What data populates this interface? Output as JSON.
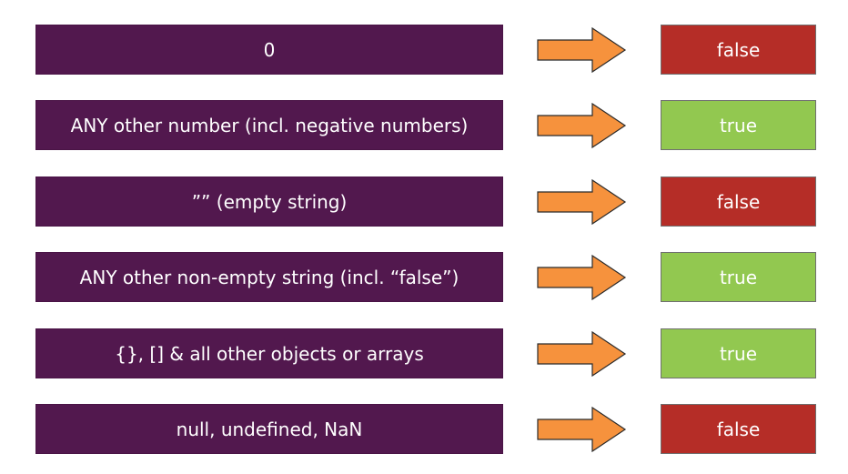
{
  "colors": {
    "value_box": "#52184e",
    "arrow_fill": "#f6923d",
    "arrow_stroke": "#2b2b2b",
    "false_fill": "#b52d27",
    "true_fill": "#92c850",
    "text": "#ffffff"
  },
  "rows": [
    {
      "value": "0",
      "result": "false",
      "result_type": "false"
    },
    {
      "value": "ANY other number (incl. negative numbers)",
      "result": "true",
      "result_type": "true"
    },
    {
      "value": "”” (empty string)",
      "result": "false",
      "result_type": "false"
    },
    {
      "value": "ANY other non-empty string (incl. “false”)",
      "result": "true",
      "result_type": "true"
    },
    {
      "value": "{}, [] & all other objects or arrays",
      "result": "true",
      "result_type": "true"
    },
    {
      "value": "null, undefined, NaN",
      "result": "false",
      "result_type": "false"
    }
  ]
}
